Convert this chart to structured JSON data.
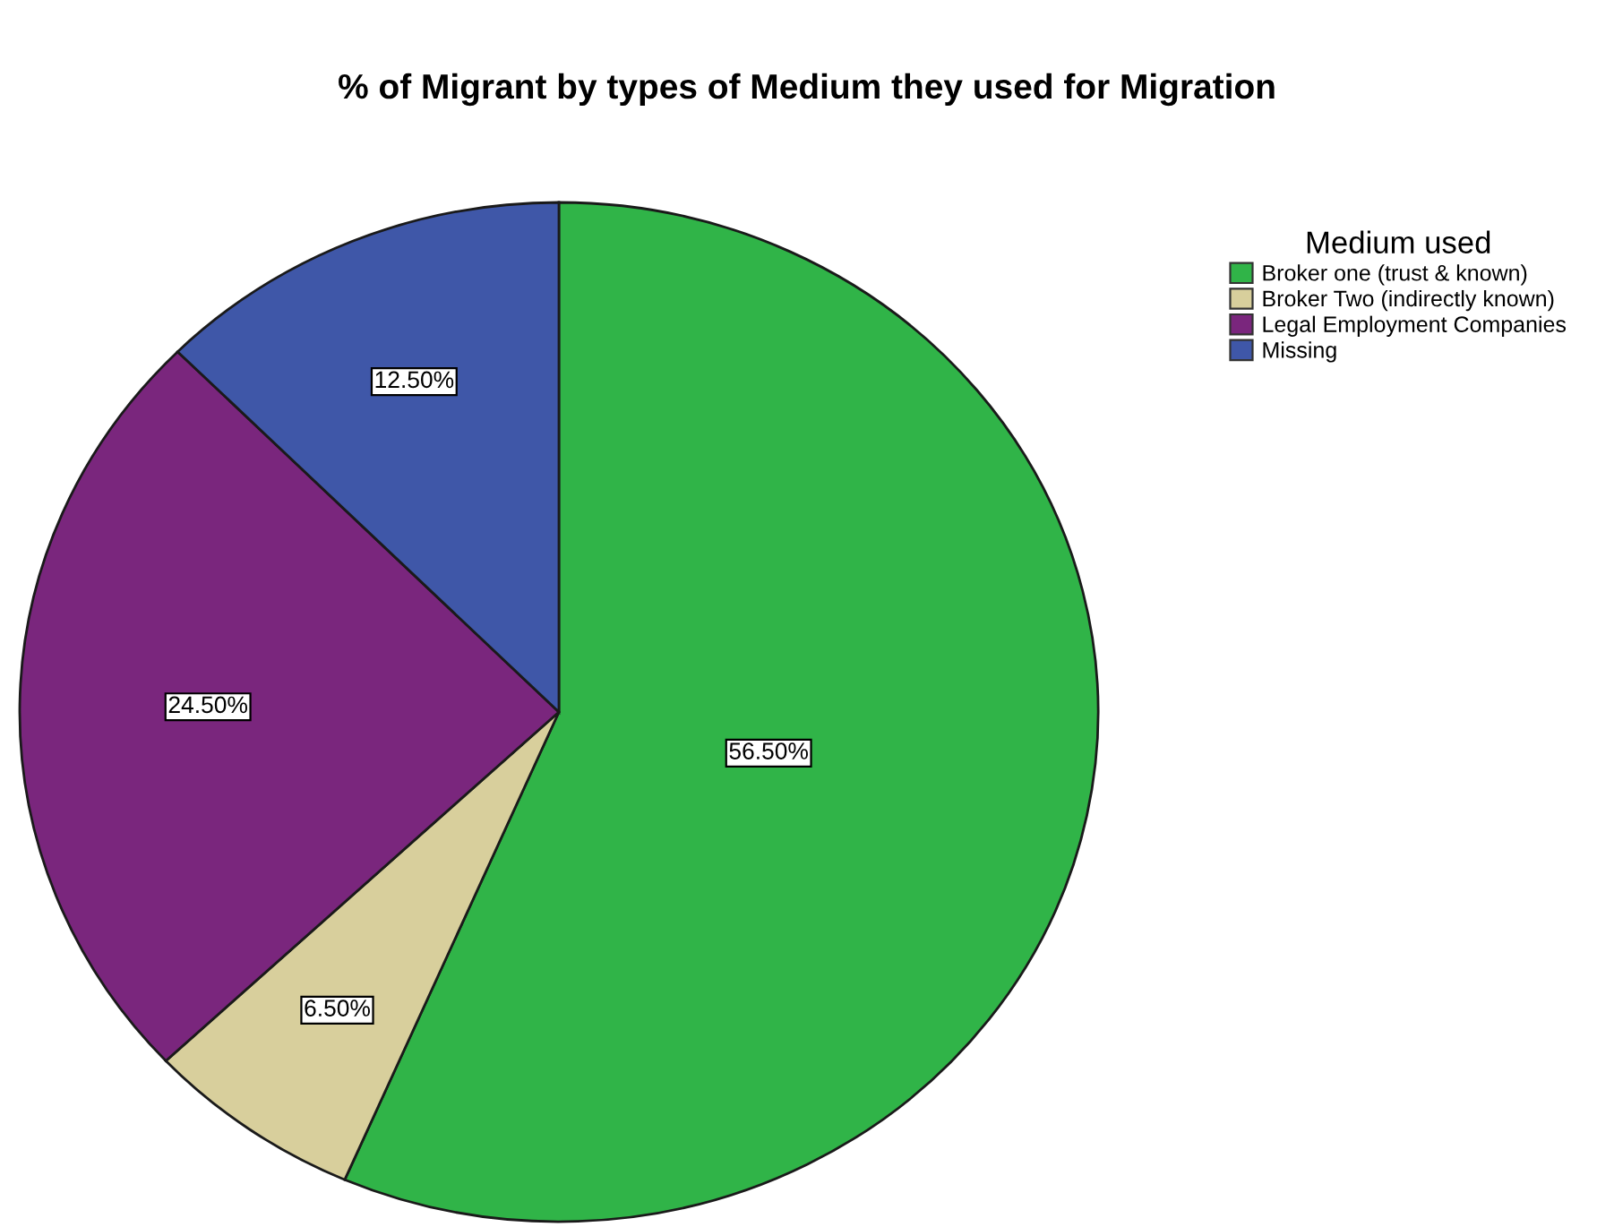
{
  "chart_data": {
    "type": "pie",
    "title": "% of Migrant by types of Medium they used for Migration",
    "legend_title": "Medium used",
    "categories": [
      "Broker one (trust & known)",
      "Broker Two (indirectly known)",
      "Legal Employment Companies",
      "Missing"
    ],
    "values": [
      56.5,
      6.5,
      24.5,
      12.5
    ],
    "colors": [
      "#30b448",
      "#d8cf9c",
      "#7a267d",
      "#3f57a8"
    ],
    "value_labels": [
      "56.50%",
      "6.50%",
      "24.50%",
      "12.50%"
    ],
    "legend": "top right"
  }
}
